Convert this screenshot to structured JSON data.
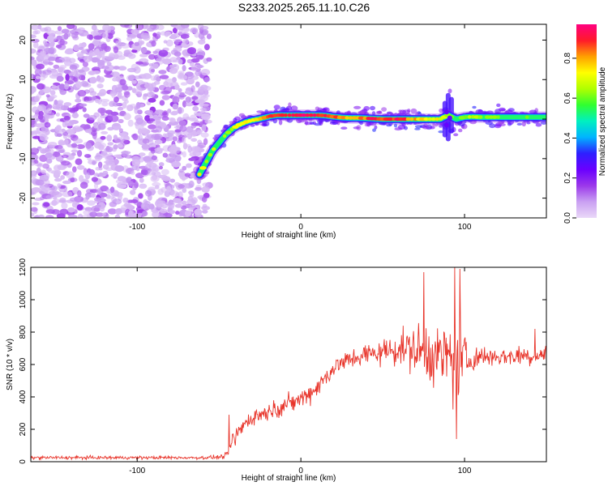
{
  "page_title": "S233.2025.265.11.10.C26",
  "colors": {
    "snr_line": "#e8352b",
    "colormap": [
      "#ead8f8",
      "#c9a0f2",
      "#9b38ea",
      "#6a00ff",
      "#2e1fff",
      "#00b4ff",
      "#00f0c0",
      "#30ff30",
      "#b0ff00",
      "#ffff00",
      "#ffa000",
      "#ff1a2a",
      "#ff0080"
    ]
  },
  "chart_data": [
    {
      "type": "heatmap",
      "title": "",
      "xlabel": "Height of straight line (km)",
      "ylabel": "Frequency (Hz)",
      "xlim": [
        -165,
        150
      ],
      "ylim": [
        -25,
        24
      ],
      "xticks": [
        -100,
        0,
        100
      ],
      "yticks": [
        -20,
        -10,
        0,
        10,
        20
      ],
      "colorbar": {
        "label": "Normalized spectral amplitude",
        "range": [
          0.0,
          0.97
        ],
        "ticks": [
          0.0,
          0.2,
          0.4,
          0.6,
          0.8
        ]
      },
      "ridge": {
        "description": "frequency of peak spectral amplitude vs height",
        "x": [
          -62,
          -58,
          -54,
          -50,
          -46,
          -42,
          -38,
          -34,
          -30,
          -26,
          -22,
          -18,
          -14,
          -10,
          -5,
          0,
          5,
          10,
          15,
          20,
          25,
          30,
          35,
          40,
          45,
          50,
          55,
          60,
          65,
          70,
          75,
          80,
          85,
          90,
          95,
          100,
          105,
          110,
          115,
          120,
          125,
          130,
          135,
          140,
          145,
          150
        ],
        "y": [
          -14,
          -11,
          -8,
          -6,
          -4,
          -2.5,
          -1.5,
          -0.8,
          -0.3,
          0,
          0.4,
          0.8,
          1,
          1,
          1,
          1,
          1,
          1,
          0.9,
          0.6,
          0.4,
          0.3,
          0.3,
          0.2,
          0.1,
          0,
          0,
          0,
          0,
          0,
          0,
          0,
          0,
          1,
          0,
          0.5,
          0.6,
          0.5,
          0.5,
          0.5,
          0.5,
          0.5,
          0.5,
          0.5,
          0.5,
          0.5
        ],
        "amplitude": [
          0.7,
          0.7,
          0.65,
          0.6,
          0.6,
          0.65,
          0.7,
          0.7,
          0.75,
          0.8,
          0.85,
          0.88,
          0.9,
          0.92,
          0.94,
          0.95,
          0.94,
          0.92,
          0.9,
          0.85,
          0.82,
          0.8,
          0.82,
          0.85,
          0.88,
          0.9,
          0.9,
          0.88,
          0.85,
          0.8,
          0.75,
          0.72,
          0.7,
          0.6,
          0.55,
          0.6,
          0.62,
          0.6,
          0.58,
          0.58,
          0.56,
          0.55,
          0.55,
          0.55,
          0.55,
          0.55
        ]
      },
      "noise_region": {
        "x_range": [
          -165,
          -60
        ],
        "amplitude_range": [
          0.1,
          0.35
        ]
      }
    },
    {
      "type": "line",
      "title": "",
      "xlabel": "Height of straight line (km)",
      "ylabel": "SNR (10 * v/v)",
      "xlim": [
        -165,
        150
      ],
      "ylim": [
        0,
        1200
      ],
      "xticks": [
        -100,
        0,
        100
      ],
      "yticks": [
        0,
        200,
        400,
        600,
        800,
        1000,
        1200
      ],
      "series": [
        {
          "name": "SNR",
          "envelope": {
            "x": [
              -165,
              -60,
              -50,
              -45,
              -42,
              -38,
              -34,
              -30,
              -26,
              -22,
              -18,
              -14,
              -10,
              -6,
              -2,
              0,
              5,
              10,
              15,
              20,
              25,
              30,
              35,
              40,
              45,
              50,
              55,
              60,
              65,
              70,
              75,
              80,
              85,
              90,
              95,
              100,
              105,
              110,
              115,
              120,
              125,
              130,
              135,
              140,
              145,
              150
            ],
            "mean": [
              25,
              25,
              28,
              40,
              120,
              180,
              240,
              270,
              290,
              300,
              320,
              330,
              350,
              360,
              380,
              390,
              420,
              460,
              520,
              580,
              610,
              630,
              650,
              660,
              670,
              680,
              690,
              700,
              700,
              690,
              680,
              670,
              650,
              640,
              630,
              620,
              640,
              650,
              650,
              650,
              650,
              650,
              660,
              650,
              660,
              660
            ],
            "spread": [
              10,
              10,
              12,
              20,
              60,
              60,
              50,
              50,
              50,
              50,
              50,
              55,
              55,
              60,
              60,
              60,
              60,
              60,
              60,
              60,
              60,
              60,
              70,
              70,
              70,
              80,
              90,
              100,
              120,
              150,
              180,
              180,
              180,
              250,
              250,
              200,
              80,
              60,
              60,
              60,
              60,
              60,
              60,
              60,
              60,
              60
            ]
          },
          "peaks": [
            {
              "x": -44,
              "y": 290
            },
            {
              "x": 75,
              "y": 1170
            },
            {
              "x": 94,
              "y": 1200
            },
            {
              "x": 97,
              "y": 1190
            },
            {
              "x": 95,
              "y": 140
            },
            {
              "x": 143,
              "y": 820
            }
          ]
        }
      ]
    }
  ]
}
